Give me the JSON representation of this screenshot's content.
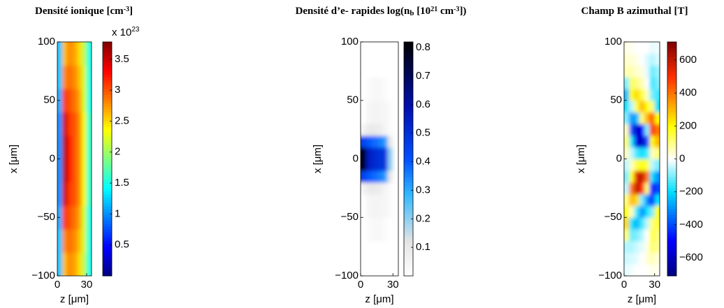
{
  "chart_data": [
    {
      "type": "heatmap",
      "title": [
        "Densité ionique [cm",
        "-3",
        "]"
      ],
      "xlabel": "z [μm]",
      "ylabel": "x [μm]",
      "colormap": "jet",
      "clim": [
        0,
        3.78
      ],
      "cticks": [
        0.5,
        1,
        1.5,
        2,
        2.5,
        3,
        3.5
      ],
      "colorbar_multiplier": [
        "x 10",
        "23"
      ],
      "xlim": [
        0,
        35
      ],
      "xticks": [
        0,
        30
      ],
      "ylim": [
        -100,
        100
      ],
      "yticks": [
        {
          "value": -100,
          "label": "−100"
        },
        {
          "value": -50,
          "label": "−50"
        },
        0,
        50,
        100
      ],
      "xbins": [
        0,
        5,
        10,
        15,
        20,
        25,
        30,
        35
      ],
      "ybins": [
        -100,
        -90,
        -80,
        -70,
        -60,
        -50,
        -40,
        -30,
        -20,
        -10,
        0,
        10,
        20,
        30,
        40,
        50,
        60,
        70,
        80,
        90,
        100
      ],
      "values": [
        [
          1.2,
          2.6,
          2.8,
          2.7,
          2.5,
          2.1,
          1.5
        ],
        [
          1.2,
          2.6,
          2.8,
          2.7,
          2.5,
          2.1,
          1.5
        ],
        [
          1.2,
          2.8,
          2.9,
          2.8,
          2.6,
          2.2,
          1.5
        ],
        [
          1.2,
          2.8,
          2.9,
          2.8,
          2.6,
          2.2,
          1.5
        ],
        [
          1.1,
          3.1,
          3.0,
          2.9,
          2.7,
          2.2,
          1.5
        ],
        [
          1.1,
          3.1,
          3.0,
          2.9,
          2.7,
          2.2,
          1.5
        ],
        [
          1.0,
          3.5,
          3.1,
          3.0,
          2.8,
          2.3,
          1.6
        ],
        [
          1.0,
          3.5,
          3.1,
          3.0,
          2.8,
          2.3,
          1.6
        ],
        [
          1.0,
          3.6,
          3.2,
          3.0,
          2.8,
          2.3,
          1.6
        ],
        [
          1.0,
          3.6,
          3.2,
          3.0,
          2.8,
          2.3,
          1.6
        ],
        [
          1.0,
          3.6,
          3.2,
          3.0,
          2.8,
          2.3,
          1.6
        ],
        [
          1.0,
          3.6,
          3.2,
          3.0,
          2.8,
          2.3,
          1.6
        ],
        [
          1.0,
          3.5,
          3.1,
          3.0,
          2.8,
          2.3,
          1.6
        ],
        [
          1.0,
          3.5,
          3.1,
          3.0,
          2.8,
          2.3,
          1.6
        ],
        [
          1.1,
          3.1,
          3.0,
          2.9,
          2.7,
          2.2,
          1.5
        ],
        [
          1.1,
          3.1,
          3.0,
          2.9,
          2.7,
          2.2,
          1.5
        ],
        [
          1.2,
          2.8,
          2.9,
          2.8,
          2.6,
          2.2,
          1.5
        ],
        [
          1.2,
          2.8,
          2.9,
          2.8,
          2.6,
          2.2,
          1.5
        ],
        [
          1.2,
          2.6,
          2.8,
          2.7,
          2.5,
          2.1,
          1.5
        ],
        [
          1.2,
          2.6,
          2.8,
          2.7,
          2.5,
          2.1,
          1.5
        ]
      ]
    },
    {
      "type": "heatmap",
      "title": [
        "Densité d’e- rapides log(n",
        "b",
        " [10",
        "21",
        " cm",
        "-3",
        "])"
      ],
      "xlabel": "z [μm]",
      "ylabel": "x [μm]",
      "colormap": "white-blue-black",
      "clim": [
        0,
        0.82
      ],
      "cticks": [
        0.1,
        0.2,
        0.3,
        0.4,
        0.5,
        0.6,
        0.7,
        0.8
      ],
      "xlim": [
        0,
        35
      ],
      "xticks": [
        0,
        30
      ],
      "ylim": [
        -100,
        100
      ],
      "yticks": [
        {
          "value": -100,
          "label": "−100"
        },
        {
          "value": -50,
          "label": "−50"
        },
        0,
        50,
        100
      ],
      "xbins": [
        0,
        5,
        10,
        15,
        20,
        25,
        30,
        35
      ],
      "ybins": [
        -100,
        -90,
        -80,
        -70,
        -60,
        -50,
        -40,
        -30,
        -20,
        -10,
        0,
        10,
        20,
        30,
        40,
        50,
        60,
        70,
        80,
        90,
        100
      ],
      "values": [
        [
          0,
          0,
          0,
          0,
          0,
          0,
          0
        ],
        [
          0,
          0,
          0,
          0,
          0,
          0,
          0
        ],
        [
          0,
          0,
          0,
          0,
          0,
          0,
          0
        ],
        [
          0,
          0.02,
          0.03,
          0.03,
          0.02,
          0,
          0
        ],
        [
          0,
          0.02,
          0.03,
          0.03,
          0.02,
          0,
          0
        ],
        [
          0,
          0.04,
          0.05,
          0.05,
          0.04,
          0.02,
          0
        ],
        [
          0,
          0.04,
          0.05,
          0.05,
          0.04,
          0.02,
          0
        ],
        [
          0.05,
          0.1,
          0.1,
          0.08,
          0.05,
          0.02,
          0
        ],
        [
          0.45,
          0.4,
          0.38,
          0.36,
          0.32,
          0.1,
          0
        ],
        [
          0.8,
          0.55,
          0.52,
          0.5,
          0.48,
          0.2,
          0
        ],
        [
          0.8,
          0.55,
          0.52,
          0.5,
          0.48,
          0.2,
          0
        ],
        [
          0.45,
          0.4,
          0.38,
          0.36,
          0.32,
          0.1,
          0
        ],
        [
          0.05,
          0.1,
          0.1,
          0.08,
          0.05,
          0.02,
          0
        ],
        [
          0,
          0.04,
          0.05,
          0.05,
          0.04,
          0.02,
          0
        ],
        [
          0,
          0.04,
          0.05,
          0.05,
          0.04,
          0.02,
          0
        ],
        [
          0,
          0.02,
          0.03,
          0.03,
          0.02,
          0,
          0
        ],
        [
          0,
          0.02,
          0.03,
          0.03,
          0.02,
          0,
          0
        ],
        [
          0,
          0,
          0,
          0,
          0,
          0,
          0
        ],
        [
          0,
          0,
          0,
          0,
          0,
          0,
          0
        ],
        [
          0,
          0,
          0,
          0,
          0,
          0,
          0
        ]
      ]
    },
    {
      "type": "heatmap",
      "title": [
        "Champ B azimuthal [T]"
      ],
      "xlabel": "z [μm]",
      "ylabel": "x [μm]",
      "colormap": "blue-white-red",
      "clim": [
        -710,
        710
      ],
      "cticks": [
        {
          "value": -600,
          "label": "−600"
        },
        {
          "value": -400,
          "label": "−400"
        },
        {
          "value": -200,
          "label": "−200"
        },
        0,
        200,
        400,
        600
      ],
      "xlim": [
        0,
        35
      ],
      "xticks": [
        0,
        30
      ],
      "ylim": [
        -100,
        100
      ],
      "yticks": [
        {
          "value": -100,
          "label": "−100"
        },
        {
          "value": -50,
          "label": "−50"
        },
        0,
        50,
        100
      ],
      "xbins": [
        0,
        5,
        10,
        15,
        20,
        25,
        30,
        35
      ],
      "ybins": [
        -100,
        -90,
        -80,
        -70,
        -60,
        -50,
        -40,
        -30,
        -20,
        -10,
        0,
        10,
        20,
        30,
        40,
        50,
        60,
        70,
        80,
        90,
        100
      ],
      "values": [
        [
          -20,
          -10,
          0,
          0,
          0,
          20,
          10
        ],
        [
          -40,
          -30,
          -20,
          0,
          30,
          60,
          30
        ],
        [
          -60,
          -60,
          -40,
          -20,
          20,
          120,
          80
        ],
        [
          100,
          -120,
          -100,
          -60,
          0,
          160,
          100
        ],
        [
          250,
          -200,
          -250,
          -150,
          -50,
          100,
          150
        ],
        [
          200,
          50,
          -150,
          -300,
          -200,
          -100,
          200
        ],
        [
          100,
          300,
          250,
          -100,
          -300,
          -450,
          -200
        ],
        [
          -50,
          400,
          600,
          500,
          100,
          -500,
          -400
        ],
        [
          -100,
          200,
          550,
          600,
          400,
          -200,
          -300
        ],
        [
          -50,
          50,
          150,
          200,
          150,
          -50,
          -100
        ],
        [
          50,
          -50,
          -150,
          -200,
          -150,
          50,
          100
        ],
        [
          100,
          -200,
          -550,
          -600,
          -400,
          200,
          300
        ],
        [
          50,
          -400,
          -600,
          -500,
          -100,
          500,
          400
        ],
        [
          -100,
          -300,
          -250,
          100,
          300,
          450,
          200
        ],
        [
          -200,
          -50,
          150,
          300,
          200,
          100,
          -200
        ],
        [
          -250,
          200,
          250,
          150,
          50,
          -100,
          -150
        ],
        [
          -100,
          120,
          100,
          60,
          0,
          -160,
          -100
        ],
        [
          60,
          60,
          40,
          20,
          -20,
          -120,
          -80
        ],
        [
          40,
          30,
          20,
          0,
          -30,
          -60,
          -30
        ],
        [
          20,
          10,
          0,
          0,
          0,
          -20,
          -10
        ]
      ]
    }
  ]
}
